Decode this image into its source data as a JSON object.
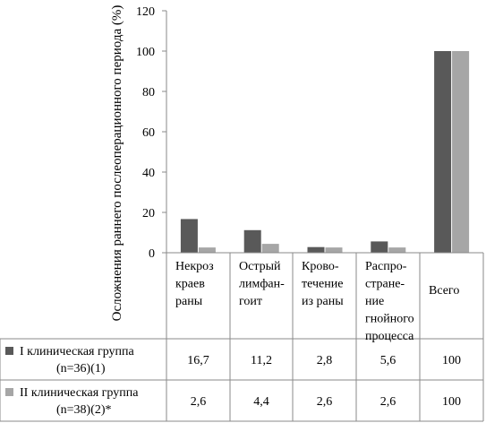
{
  "chart_data": {
    "type": "bar",
    "ylabel": "Осложнения раннего послеоперационного периода (%)",
    "ylim": [
      0,
      120
    ],
    "yticks": [
      "0",
      "20",
      "40",
      "60",
      "80",
      "100",
      "120"
    ],
    "grid": false,
    "legend": "table-left",
    "categories": [
      [
        "Некроз",
        "краев",
        "раны"
      ],
      [
        "Острый",
        "лимфан-",
        "гоит"
      ],
      [
        "Крово-",
        "течение",
        "из раны"
      ],
      [
        "Распро-",
        "стране-",
        "ние",
        "гнойного",
        "процесса"
      ],
      [
        "Всего"
      ]
    ],
    "series": [
      {
        "name": [
          "I клиническая  группа",
          "(n=36)(1)"
        ],
        "color": "#595959",
        "values": [
          16.7,
          11.2,
          2.8,
          5.6,
          100
        ],
        "labels": [
          "16,7",
          "11,2",
          "2,8",
          "5,6",
          "100"
        ]
      },
      {
        "name": [
          "II клиническая  группа",
          "(n=38)(2)*"
        ],
        "color": "#a6a6a6",
        "values": [
          2.6,
          4.4,
          2.6,
          2.6,
          100
        ],
        "labels": [
          "2,6",
          "4,4",
          "2,6",
          "2,6",
          "100"
        ]
      }
    ]
  }
}
